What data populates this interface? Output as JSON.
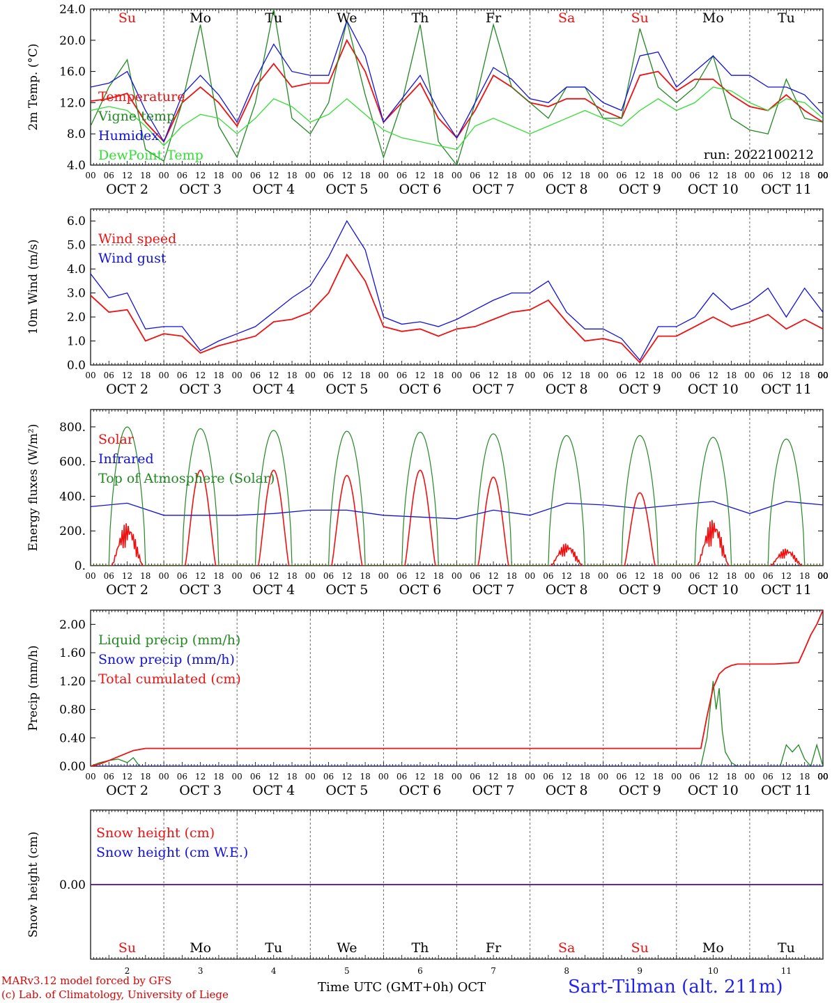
{
  "footer": {
    "credit_line1": "MARv3.12 model forced by GFS",
    "credit_line2": "(c) Lab. of Climatology, University of Liege",
    "x_title": "Time UTC (GMT+0h)",
    "x_title_unit": "OCT",
    "station": "Sart-Tilman (alt. 211m)"
  },
  "colors": {
    "red": "#ee1111",
    "blue": "#1111dd",
    "green": "#228822",
    "lightgreen": "#33dd33",
    "grid": "#666666"
  },
  "chart_data": {
    "hour_ticks": [
      "00",
      "06",
      "12",
      "18"
    ],
    "days": [
      {
        "date": "OCT  2",
        "weekday": "Su",
        "weekend": true,
        "num": "2"
      },
      {
        "date": "OCT  3",
        "weekday": "Mo",
        "weekend": false,
        "num": "3"
      },
      {
        "date": "OCT  4",
        "weekday": "Tu",
        "weekend": false,
        "num": "4"
      },
      {
        "date": "OCT  5",
        "weekday": "We",
        "weekend": false,
        "num": "5"
      },
      {
        "date": "OCT  6",
        "weekday": "Th",
        "weekend": false,
        "num": "6"
      },
      {
        "date": "OCT  7",
        "weekday": "Fr",
        "weekend": false,
        "num": "7"
      },
      {
        "date": "OCT  8",
        "weekday": "Sa",
        "weekend": true,
        "num": "8"
      },
      {
        "date": "OCT  9",
        "weekday": "Su",
        "weekend": true,
        "num": "9"
      },
      {
        "date": "OCT 10",
        "weekday": "Mo",
        "weekend": false,
        "num": "10"
      },
      {
        "date": "OCT 11",
        "weekday": "Tu",
        "weekend": false,
        "num": "11"
      }
    ],
    "panels": [
      {
        "type": "line",
        "ylabel": "2m Temp. (°C)",
        "ylim": [
          4,
          24
        ],
        "yticks": [
          "4.0",
          "8.0",
          "12.0",
          "16.0",
          "20.0",
          "24.0"
        ],
        "annotation": "run: 2022100212",
        "series": [
          {
            "name": "Temperature",
            "color": "red",
            "x": [
              0,
              6,
              12,
              18,
              24,
              30,
              36,
              42,
              48,
              54,
              60,
              66,
              72,
              78,
              84,
              90,
              96,
              102,
              108,
              114,
              120,
              126,
              132,
              138,
              144,
              150,
              156,
              162,
              168,
              174,
              180,
              186,
              192,
              198,
              204,
              210,
              216,
              222,
              228,
              234,
              240
            ],
            "values": [
              12.2,
              12.5,
              13.2,
              9.5,
              7.0,
              12.0,
              14.0,
              12.0,
              9.0,
              14.0,
              17.0,
              14.0,
              14.5,
              14.5,
              20.0,
              16.0,
              9.5,
              12.0,
              14.5,
              10.0,
              7.5,
              11.0,
              15.5,
              14.0,
              12.0,
              11.5,
              12.5,
              12.5,
              11.0,
              10.0,
              15.5,
              16.0,
              13.5,
              15.0,
              15.0,
              13.0,
              11.5,
              11.0,
              13.0,
              11.0,
              9.5
            ]
          },
          {
            "name": "Vigne temp",
            "color": "green",
            "x": [
              0,
              6,
              12,
              18,
              24,
              30,
              36,
              42,
              48,
              54,
              60,
              66,
              72,
              78,
              84,
              90,
              96,
              102,
              108,
              114,
              120,
              126,
              132,
              138,
              144,
              150,
              156,
              162,
              168,
              174,
              180,
              186,
              192,
              198,
              204,
              210,
              216,
              222,
              228,
              234,
              240
            ],
            "values": [
              9.0,
              14.0,
              17.5,
              6.0,
              4.5,
              12.0,
              22.0,
              9.0,
              5.0,
              12.0,
              24.0,
              10.0,
              8.0,
              12.0,
              22.5,
              13.0,
              5.0,
              12.0,
              22.0,
              7.0,
              4.0,
              12.0,
              22.0,
              14.0,
              12.0,
              10.0,
              14.0,
              14.0,
              10.0,
              10.0,
              21.5,
              14.0,
              12.0,
              14.0,
              18.0,
              10.0,
              8.5,
              8.0,
              15.0,
              10.0,
              9.5
            ]
          },
          {
            "name": "Humidex",
            "color": "blue",
            "x": [
              0,
              6,
              12,
              18,
              24,
              30,
              36,
              42,
              48,
              54,
              60,
              66,
              72,
              78,
              84,
              90,
              96,
              102,
              108,
              114,
              120,
              126,
              132,
              138,
              144,
              150,
              156,
              162,
              168,
              174,
              180,
              186,
              192,
              198,
              204,
              210,
              216,
              222,
              228,
              234,
              240
            ],
            "values": [
              14.0,
              14.5,
              16.0,
              11.0,
              7.0,
              13.0,
              15.5,
              13.0,
              9.5,
              15.0,
              19.5,
              16.0,
              15.5,
              15.5,
              22.5,
              18.0,
              9.5,
              12.5,
              15.5,
              11.0,
              7.5,
              12.0,
              16.5,
              15.0,
              12.5,
              12.0,
              14.0,
              14.0,
              12.0,
              11.0,
              18.0,
              18.5,
              14.0,
              16.0,
              18.0,
              15.5,
              15.5,
              14.0,
              14.0,
              13.0,
              10.5
            ]
          },
          {
            "name": "DewPoint Temp",
            "color": "lightgreen",
            "x": [
              0,
              6,
              12,
              18,
              24,
              30,
              36,
              42,
              48,
              54,
              60,
              66,
              72,
              78,
              84,
              90,
              96,
              102,
              108,
              114,
              120,
              126,
              132,
              138,
              144,
              150,
              156,
              162,
              168,
              174,
              180,
              186,
              192,
              198,
              204,
              210,
              216,
              222,
              228,
              234,
              240
            ],
            "values": [
              11.0,
              11.5,
              11.0,
              9.0,
              6.5,
              9.0,
              10.5,
              10.0,
              8.0,
              10.0,
              12.5,
              11.5,
              9.5,
              10.5,
              12.5,
              10.5,
              8.5,
              7.5,
              7.0,
              6.5,
              6.0,
              9.0,
              10.0,
              9.0,
              8.0,
              9.0,
              10.0,
              11.0,
              10.0,
              9.0,
              11.0,
              12.5,
              11.0,
              12.0,
              14.0,
              13.5,
              12.0,
              11.0,
              12.5,
              12.0,
              10.0
            ]
          }
        ]
      },
      {
        "type": "line",
        "ylabel": "10m Wind (m/s)",
        "ylim": [
          0,
          6.5
        ],
        "yticks": [
          "0.0",
          "1.0",
          "2.0",
          "3.0",
          "4.0",
          "5.0",
          "6.0"
        ],
        "ref_line": 5,
        "series": [
          {
            "name": "Wind speed",
            "color": "red",
            "x": [
              0,
              6,
              12,
              18,
              24,
              30,
              36,
              42,
              48,
              54,
              60,
              66,
              72,
              78,
              84,
              90,
              96,
              102,
              108,
              114,
              120,
              126,
              132,
              138,
              144,
              150,
              156,
              162,
              168,
              174,
              180,
              186,
              192,
              198,
              204,
              210,
              216,
              222,
              228,
              234,
              240
            ],
            "values": [
              2.9,
              2.2,
              2.3,
              1.0,
              1.3,
              1.2,
              0.5,
              0.8,
              1.0,
              1.2,
              1.8,
              1.9,
              2.2,
              3.0,
              4.6,
              3.5,
              1.6,
              1.4,
              1.5,
              1.2,
              1.5,
              1.6,
              1.9,
              2.2,
              2.3,
              2.7,
              1.8,
              1.0,
              1.1,
              0.9,
              0.1,
              1.2,
              1.2,
              1.6,
              2.0,
              1.6,
              1.8,
              2.1,
              1.5,
              1.9,
              1.5
            ]
          },
          {
            "name": "Wind gust",
            "color": "blue",
            "x": [
              0,
              6,
              12,
              18,
              24,
              30,
              36,
              42,
              48,
              54,
              60,
              66,
              72,
              78,
              84,
              90,
              96,
              102,
              108,
              114,
              120,
              126,
              132,
              138,
              144,
              150,
              156,
              162,
              168,
              174,
              180,
              186,
              192,
              198,
              204,
              210,
              216,
              222,
              228,
              234,
              240
            ],
            "values": [
              3.8,
              2.8,
              3.0,
              1.5,
              1.6,
              1.6,
              0.6,
              1.0,
              1.3,
              1.6,
              2.2,
              2.8,
              3.3,
              4.5,
              6.0,
              4.8,
              2.0,
              1.7,
              1.8,
              1.6,
              1.9,
              2.3,
              2.7,
              3.0,
              3.0,
              3.5,
              2.2,
              1.5,
              1.5,
              1.1,
              0.2,
              1.6,
              1.6,
              2.0,
              3.0,
              2.3,
              2.6,
              3.2,
              2.0,
              3.2,
              2.2
            ]
          }
        ]
      },
      {
        "type": "area",
        "ylabel": "Energy fluxes (W/m²)",
        "ylim": [
          0,
          900
        ],
        "yticks": [
          "0.",
          "200.",
          "400.",
          "600.",
          "800."
        ],
        "series": [
          {
            "name": "Solar",
            "color": "red",
            "peaks": [
              250,
              550,
              550,
              520,
              550,
              510,
              130,
              420,
              270,
              100
            ],
            "spiky": [
              true,
              false,
              false,
              false,
              false,
              false,
              true,
              false,
              true,
              true
            ]
          },
          {
            "name": "Infrared",
            "color": "blue",
            "x": [
              0,
              12,
              24,
              36,
              48,
              60,
              72,
              84,
              96,
              108,
              120,
              132,
              144,
              156,
              168,
              180,
              192,
              204,
              216,
              228,
              240
            ],
            "values": [
              340,
              360,
              290,
              290,
              290,
              300,
              320,
              320,
              290,
              280,
              270,
              320,
              290,
              360,
              350,
              330,
              350,
              370,
              300,
              370,
              350
            ]
          },
          {
            "name": "Top of Atmosphere (Solar)",
            "color": "green",
            "peaks": [
              800,
              790,
              780,
              775,
              770,
              760,
              750,
              750,
              740,
              730
            ]
          }
        ]
      },
      {
        "type": "line",
        "ylabel": "Precip (mm/h)",
        "ylim": [
          0,
          2.2
        ],
        "yticks": [
          "0.00",
          "0.40",
          "0.80",
          "1.20",
          "1.60",
          "2.00"
        ],
        "series": [
          {
            "name": "Liquid precip (mm/h)",
            "color": "green",
            "x": [
              0,
              3,
              6,
              9,
              12,
              14,
              16,
              18,
              24,
              200,
              202,
              204,
              205,
              206,
              207,
              208,
              210,
              212,
              216,
              226,
              228,
              230,
              232,
              234,
              236,
              238,
              240
            ],
            "values": [
              0,
              0.05,
              0.08,
              0.1,
              0.05,
              0.12,
              0,
              0,
              0,
              0,
              0.4,
              1.2,
              0.8,
              1.1,
              0.5,
              0.2,
              0.05,
              0,
              0,
              0,
              0.3,
              0.2,
              0.3,
              0.1,
              0,
              0.3,
              0
            ]
          },
          {
            "name": "Snow precip (mm/h)",
            "color": "blue",
            "x": [
              0,
              240
            ],
            "values": [
              0,
              0
            ]
          },
          {
            "name": "Total cumulated (cm)",
            "color": "red",
            "x": [
              0,
              3,
              6,
              10,
              14,
              18,
              24,
              60,
              120,
              180,
              200,
              202,
              204,
              206,
              208,
              210,
              212,
              216,
              220,
              224,
              232,
              234,
              236,
              238,
              240
            ],
            "values": [
              0,
              0.03,
              0.08,
              0.15,
              0.22,
              0.25,
              0.25,
              0.25,
              0.25,
              0.25,
              0.25,
              0.7,
              1.1,
              1.3,
              1.38,
              1.42,
              1.44,
              1.44,
              1.44,
              1.44,
              1.46,
              1.65,
              1.85,
              2.0,
              2.2
            ]
          }
        ]
      },
      {
        "type": "line",
        "ylabel": "Snow height (cm)",
        "ylim": [
          -1,
          1
        ],
        "yticks": [
          "0.00"
        ],
        "series": [
          {
            "name": "Snow height (cm)",
            "color": "red",
            "x": [
              0,
              240
            ],
            "values": [
              0,
              0
            ]
          },
          {
            "name": "Snow height (cm W.E.)",
            "color": "blue",
            "x": [
              0,
              240
            ],
            "values": [
              0,
              0
            ]
          }
        ]
      }
    ]
  }
}
